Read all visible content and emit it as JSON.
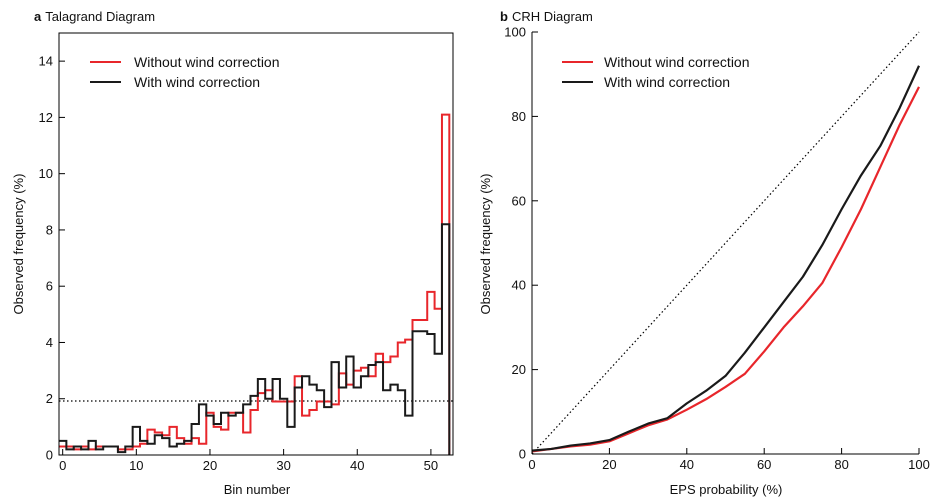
{
  "colors": {
    "without": "#e8262b",
    "with": "#1a1a1a",
    "frame": "#000000"
  },
  "chart_data": [
    {
      "type": "line",
      "panel_letter": "a",
      "title": "Talagrand Diagram",
      "xlabel": "Bin number",
      "ylabel": "Observed frequency (%)",
      "xlim": [
        -0.5,
        53
      ],
      "ylim": [
        0,
        15
      ],
      "xticks": [
        0,
        10,
        20,
        30,
        40,
        50
      ],
      "yticks": [
        0,
        2,
        4,
        6,
        8,
        10,
        12,
        14
      ],
      "reference_line": {
        "y": 1.92,
        "style": "dotted"
      },
      "legend": {
        "position": "top-left",
        "entries": [
          "Without wind correction",
          "With wind correction"
        ]
      },
      "series": [
        {
          "name": "Without wind correction",
          "color": "#e8262b",
          "step": true,
          "values": [
            0.3,
            0.3,
            0.2,
            0.3,
            0.2,
            0.3,
            0.3,
            0.3,
            0.2,
            0.2,
            0.3,
            0.4,
            0.9,
            0.8,
            0.7,
            1.0,
            0.6,
            0.4,
            0.6,
            0.4,
            1.5,
            1.0,
            0.9,
            1.5,
            1.5,
            0.8,
            1.6,
            2.2,
            2.3,
            1.9,
            1.9,
            1.9,
            2.8,
            1.4,
            1.6,
            1.9,
            1.9,
            1.8,
            2.9,
            2.5,
            3.0,
            3.1,
            2.8,
            3.6,
            3.3,
            3.5,
            4.0,
            4.1,
            4.8,
            4.8,
            5.8,
            5.2,
            12.1
          ]
        },
        {
          "name": "With wind correction",
          "color": "#1a1a1a",
          "step": true,
          "values": [
            0.5,
            0.2,
            0.3,
            0.2,
            0.5,
            0.2,
            0.3,
            0.3,
            0.1,
            0.3,
            1.0,
            0.5,
            0.4,
            0.7,
            0.6,
            0.3,
            0.4,
            0.5,
            1.1,
            1.8,
            1.4,
            1.1,
            1.5,
            1.4,
            1.5,
            1.8,
            2.1,
            2.7,
            2.0,
            2.7,
            2.0,
            1.0,
            2.4,
            2.8,
            2.5,
            2.3,
            1.7,
            3.3,
            2.4,
            3.5,
            2.4,
            2.8,
            3.2,
            3.3,
            2.3,
            2.5,
            2.3,
            1.4,
            4.4,
            4.4,
            4.3,
            3.6,
            8.2
          ]
        }
      ]
    },
    {
      "type": "line",
      "panel_letter": "b",
      "title": "CRH Diagram",
      "xlabel": "EPS probability (%)",
      "ylabel": "Observed frequency (%)",
      "xlim": [
        0,
        100
      ],
      "ylim": [
        0,
        100
      ],
      "xticks": [
        0,
        20,
        40,
        60,
        80,
        100
      ],
      "yticks": [
        0,
        20,
        40,
        60,
        80,
        100
      ],
      "diagonal": {
        "style": "dotted"
      },
      "legend": {
        "position": "top-left",
        "entries": [
          "Without wind correction",
          "With wind correction"
        ]
      },
      "series": [
        {
          "name": "Without wind correction",
          "color": "#e8262b",
          "x": [
            0,
            5,
            10,
            15,
            20,
            25,
            30,
            35,
            40,
            45,
            50,
            55,
            60,
            65,
            70,
            75,
            80,
            85,
            90,
            95,
            100
          ],
          "y": [
            0.6,
            1.2,
            1.8,
            2.2,
            3.0,
            4.9,
            6.8,
            8.2,
            10.5,
            13.0,
            15.9,
            19.0,
            24.3,
            30.0,
            35.0,
            40.5,
            49.0,
            58.0,
            68.0,
            78.0,
            87.0
          ]
        },
        {
          "name": "With wind correction",
          "color": "#1a1a1a",
          "x": [
            0,
            5,
            10,
            15,
            20,
            25,
            30,
            35,
            40,
            45,
            50,
            55,
            60,
            65,
            70,
            75,
            80,
            85,
            90,
            95,
            100
          ],
          "y": [
            0.8,
            1.2,
            2.0,
            2.5,
            3.3,
            5.3,
            7.2,
            8.5,
            12.0,
            15.0,
            18.5,
            24.0,
            30.0,
            36.0,
            42.0,
            49.5,
            58.0,
            66.0,
            73.0,
            82.0,
            92.0
          ]
        }
      ]
    }
  ]
}
